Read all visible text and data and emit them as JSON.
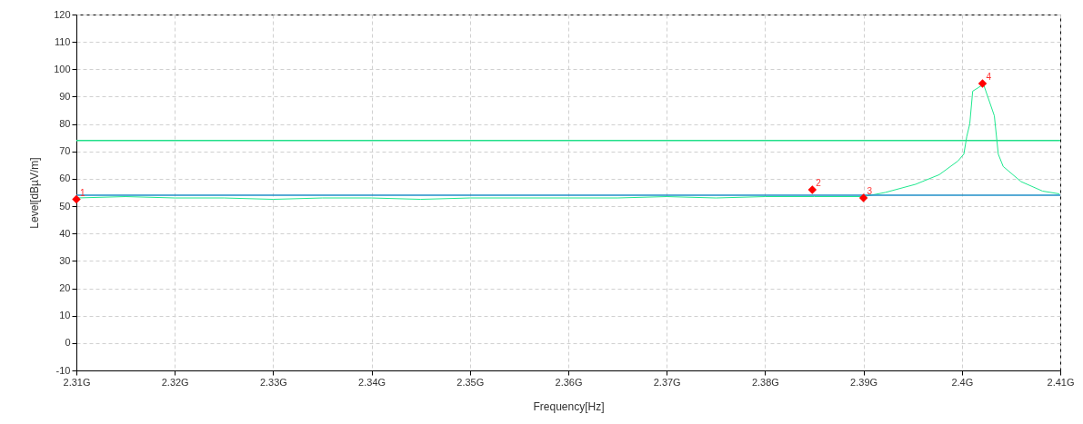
{
  "chart_data": {
    "type": "line",
    "xlabel": "Frequency[Hz]",
    "ylabel": "Level[dBµV/m]",
    "xlim": [
      2.31,
      2.41
    ],
    "ylim": [
      -10,
      120
    ],
    "xticks": [
      {
        "value": 2.31,
        "label": "2.31G"
      },
      {
        "value": 2.32,
        "label": "2.32G"
      },
      {
        "value": 2.33,
        "label": "2.33G"
      },
      {
        "value": 2.34,
        "label": "2.34G"
      },
      {
        "value": 2.35,
        "label": "2.35G"
      },
      {
        "value": 2.36,
        "label": "2.36G"
      },
      {
        "value": 2.37,
        "label": "2.37G"
      },
      {
        "value": 2.38,
        "label": "2.38G"
      },
      {
        "value": 2.39,
        "label": "2.39G"
      },
      {
        "value": 2.4,
        "label": "2.4G"
      },
      {
        "value": 2.41,
        "label": "2.41G"
      }
    ],
    "yticks": [
      -10,
      0,
      10,
      20,
      30,
      40,
      50,
      60,
      70,
      80,
      90,
      100,
      110,
      120
    ],
    "grid": true,
    "line_style": "solid",
    "ref_lines": [
      {
        "axis": "y",
        "value": 74,
        "color": "#22e08a"
      },
      {
        "axis": "y",
        "value": 54,
        "color": "#1f8fc8"
      }
    ],
    "series": [
      {
        "marker": "none",
        "color": "#1ee88e",
        "x": [
          2.31,
          2.315,
          2.32,
          2.325,
          2.33,
          2.335,
          2.34,
          2.345,
          2.35,
          2.355,
          2.36,
          2.365,
          2.37,
          2.375,
          2.38,
          2.385,
          2.39,
          2.3922,
          2.3953,
          2.3977,
          2.3996,
          2.4002,
          2.4005,
          2.4008,
          2.4011,
          2.4022,
          2.4033,
          2.4037,
          2.4042,
          2.406,
          2.4082,
          2.4099
        ],
        "values": [
          53,
          53.5,
          53,
          53,
          52.5,
          53,
          53,
          52.5,
          53,
          53,
          53,
          53,
          53.5,
          53,
          53.5,
          53.5,
          53.5,
          55,
          58,
          61.5,
          66.5,
          69,
          75.5,
          80,
          92,
          94.5,
          83,
          69,
          64.5,
          59,
          55.5,
          54.5
        ]
      },
      {
        "type": "scatter",
        "marker": "diamond",
        "color": "#ff0000",
        "x": [
          2.31,
          2.3848,
          2.39,
          2.4021
        ],
        "values": [
          52.5,
          56,
          53,
          94.8
        ]
      }
    ],
    "annotations": [
      {
        "text": "1",
        "x": 2.31,
        "y": 52.5
      },
      {
        "text": "2",
        "x": 2.3848,
        "y": 56
      },
      {
        "text": "3",
        "x": 2.39,
        "y": 53
      },
      {
        "text": "4",
        "x": 2.4021,
        "y": 94.8
      }
    ]
  }
}
